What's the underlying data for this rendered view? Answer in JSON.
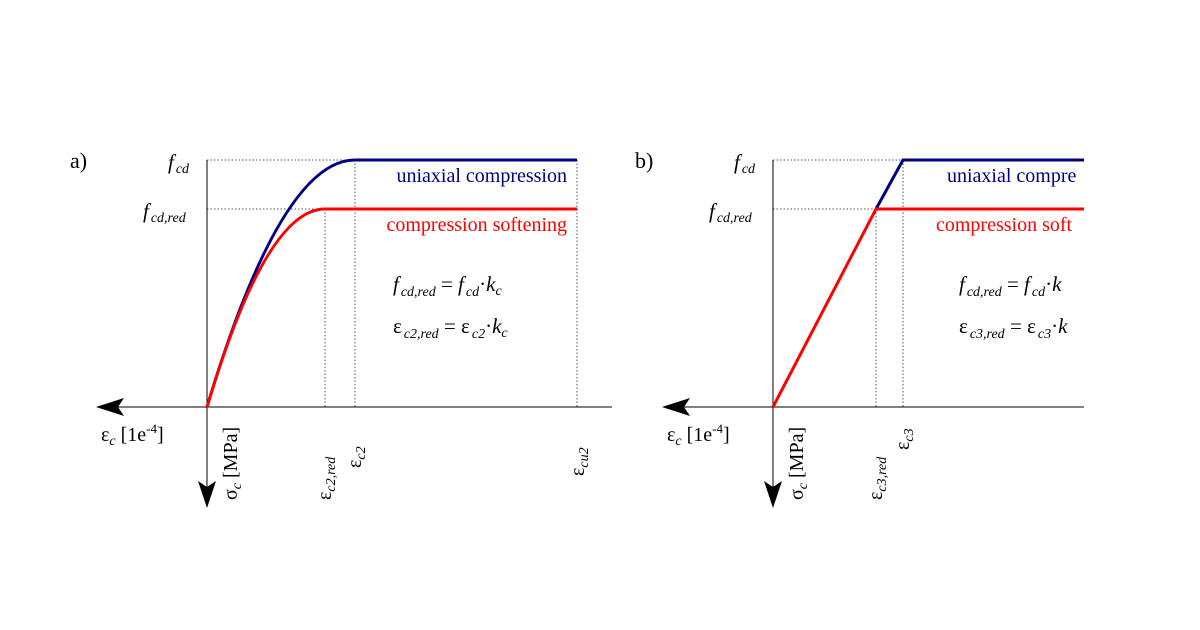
{
  "colors": {
    "uniaxial": "#000080",
    "softening": "#ff0000",
    "axis": "#000000",
    "guide": "#555555"
  },
  "panels": [
    {
      "label": "a)",
      "fcd": "f",
      "fcd_sub": "cd",
      "fcdred": "f",
      "fcdred_sub": "cd,red",
      "legend_uniaxial": "uniaxial compression",
      "legend_softening": "compression softening",
      "eq1": {
        "lhs": "f",
        "lhs_sub": "cd,red",
        "eq": " = ",
        "rhs": "f",
        "rhs_sub": "cd",
        "dot": "·",
        "k": "k",
        "k_sub": "c"
      },
      "eq2": {
        "lhs": "ε",
        "lhs_sub": "c2,red",
        "eq": " = ",
        "rhs": "ε",
        "rhs_sub": "c2",
        "dot": "·",
        "k": "k",
        "k_sub": "c"
      },
      "xaxis": {
        "sym": "ε",
        "sub": "c",
        "unit": " [1e",
        "exp": "-4",
        "close": "]"
      },
      "yaxis": {
        "sym": "σ",
        "sub": "c",
        "unit": " [MPa]"
      },
      "ticks": [
        {
          "sym": "ε",
          "sub": "c2,red"
        },
        {
          "sym": "ε",
          "sub": "c2"
        },
        {
          "sym": "ε",
          "sub": "cu2"
        }
      ]
    },
    {
      "label": "b)",
      "fcd": "f",
      "fcd_sub": "cd",
      "fcdred": "f",
      "fcdred_sub": "cd,red",
      "legend_uniaxial": "uniaxial compre",
      "legend_softening": "compression soft",
      "eq1": {
        "lhs": "f",
        "lhs_sub": "cd,red",
        "eq": " = ",
        "rhs": "f",
        "rhs_sub": "cd",
        "dot": "·",
        "k": "k",
        "k_sub": ""
      },
      "eq2": {
        "lhs": "ε",
        "lhs_sub": "c3,red",
        "eq": " = ",
        "rhs": "ε",
        "rhs_sub": "c3",
        "dot": "·",
        "k": "k",
        "k_sub": ""
      },
      "xaxis": {
        "sym": "ε",
        "sub": "c",
        "unit": " [1e",
        "exp": "-4",
        "close": "]"
      },
      "yaxis": {
        "sym": "σ",
        "sub": "c",
        "unit": " [MPa]"
      },
      "ticks": [
        {
          "sym": "ε",
          "sub": "c3,red"
        },
        {
          "sym": "ε",
          "sub": "c3"
        }
      ]
    }
  ]
}
